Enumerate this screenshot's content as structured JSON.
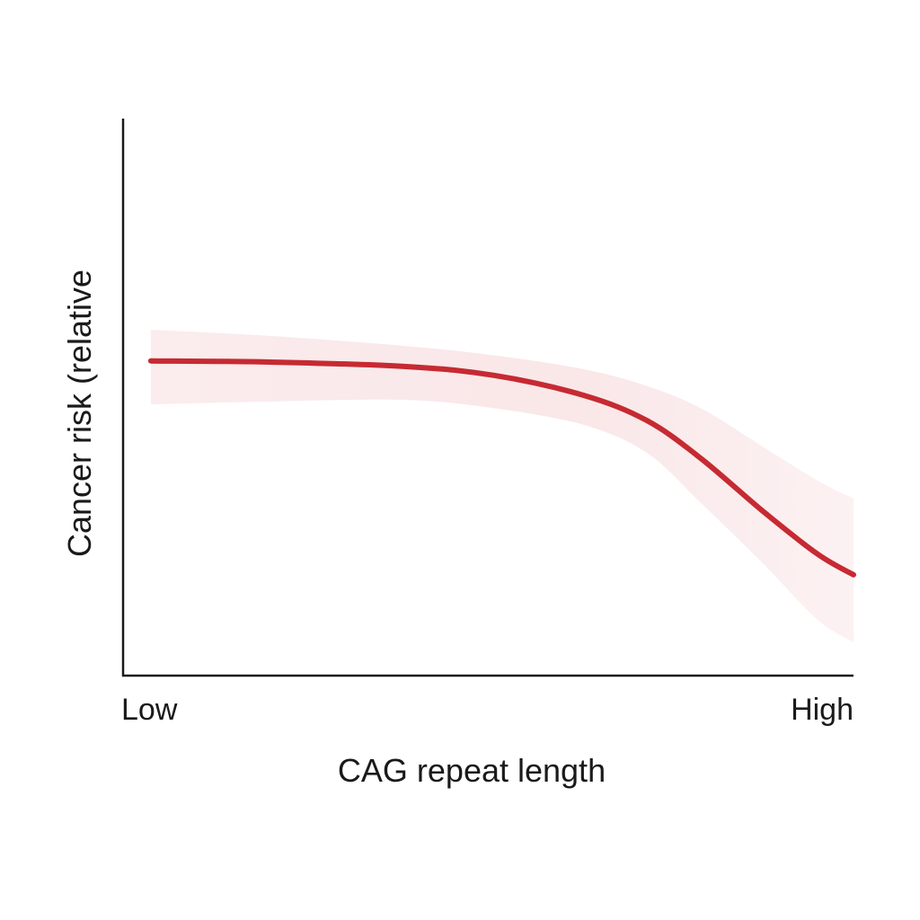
{
  "chart_data": {
    "type": "line",
    "title": "",
    "xlabel": "CAG repeat length",
    "ylabel": "Cancer risk (relative",
    "x_tick_labels": [
      "Low",
      "High"
    ],
    "xlim": [
      0,
      1
    ],
    "ylim": [
      0,
      1
    ],
    "grid": false,
    "colors": {
      "line": "#c62a32",
      "band": "#f3c9cc",
      "axis": "#1a1a1a"
    },
    "series": [
      {
        "x": [
          0.038,
          0.2,
          0.385,
          0.508,
          0.631,
          0.717,
          0.791,
          0.877,
          0.951,
          1.0
        ],
        "y": [
          0.565,
          0.563,
          0.555,
          0.539,
          0.503,
          0.458,
          0.39,
          0.294,
          0.218,
          0.181
        ],
        "band_upper": [
          0.621,
          0.61,
          0.592,
          0.575,
          0.55,
          0.52,
          0.48,
          0.41,
          0.35,
          0.318
        ],
        "band_lower": [
          0.487,
          0.492,
          0.495,
          0.48,
          0.45,
          0.4,
          0.31,
          0.2,
          0.1,
          0.06
        ]
      }
    ]
  }
}
